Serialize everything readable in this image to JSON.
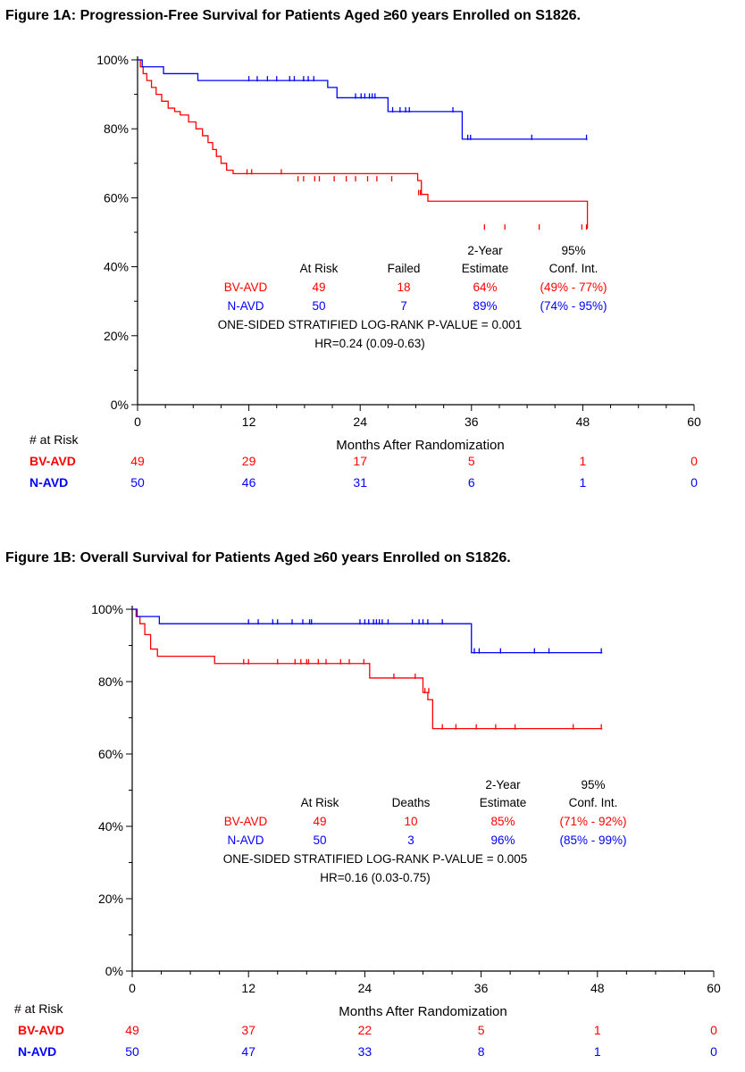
{
  "chart_data": [
    {
      "type": "line",
      "title": "Figure 1A: Progression-Free Survival for Patients Aged ≥60 years Enrolled on S1826.",
      "xlabel": "Months After Randomization",
      "ylabel": "",
      "xlim": [
        0,
        60
      ],
      "ylim": [
        0,
        100
      ],
      "x_ticks": [
        "0",
        "12",
        "24",
        "36",
        "48",
        "60"
      ],
      "y_ticks": [
        "0%",
        "20%",
        "40%",
        "60%",
        "80%",
        "100%"
      ],
      "grid": false,
      "series": [
        {
          "name": "BV-AVD",
          "color": "#ff0000",
          "x": [
            0,
            0.3,
            0.6,
            1.0,
            1.5,
            2.0,
            2.6,
            3.3,
            4.0,
            4.6,
            5.5,
            6.3,
            7.0,
            7.6,
            8.1,
            8.5,
            9.0,
            9.6,
            10.3,
            30.2,
            30.6,
            31.3,
            48.5
          ],
          "y": [
            100,
            98,
            96,
            94,
            92,
            90,
            88,
            86,
            85,
            84,
            82,
            80,
            78,
            76,
            74,
            72,
            70,
            68,
            67,
            65,
            61,
            59,
            51
          ],
          "censor_x": [
            11.8,
            12.3,
            15.5,
            17.3,
            17.9,
            19.1,
            19.6,
            21.2,
            22.5,
            23.5,
            24.8,
            25.8,
            27.4,
            30.3,
            30.5,
            37.4,
            39.6,
            43.3,
            47.9,
            48.4
          ],
          "censor_y": [
            67,
            67,
            67,
            65,
            65,
            65,
            65,
            65,
            65,
            65,
            65,
            65,
            65,
            61,
            61,
            51,
            51,
            51,
            51,
            51
          ]
        },
        {
          "name": "N-AVD",
          "color": "#0000ff",
          "x": [
            0,
            0.5,
            2.8,
            6.5,
            19.5,
            20.5,
            21.5,
            27.0,
            35.0,
            36.0,
            48.5
          ],
          "y": [
            100,
            98,
            96,
            94,
            94,
            92,
            89,
            85,
            77,
            77,
            77
          ],
          "censor_x": [
            12.0,
            12.9,
            14.0,
            15.0,
            16.4,
            16.9,
            17.9,
            18.4,
            19.0,
            23.5,
            24.1,
            24.5,
            25.0,
            25.3,
            25.6,
            27.5,
            28.3,
            28.9,
            29.3,
            34.0,
            35.6,
            35.9,
            42.5,
            48.4
          ],
          "censor_y": [
            94,
            94,
            94,
            94,
            94,
            94,
            94,
            94,
            94,
            89,
            89,
            89,
            89,
            89,
            89,
            85,
            85,
            85,
            85,
            85,
            77,
            77,
            77,
            77
          ]
        }
      ],
      "summary_table": {
        "headers": [
          "At Risk",
          "Failed",
          "2-Year\nEstimate",
          "95%\nConf. Int."
        ],
        "rows": [
          {
            "name": "BV-AVD",
            "values": [
              "49",
              "18",
              "64%",
              "(49% - 77%)"
            ]
          },
          {
            "name": "N-AVD",
            "values": [
              "50",
              "7",
              "89%",
              "(74% - 95%)"
            ]
          }
        ],
        "pvalue": "ONE-SIDED STRATIFIED LOG-RANK P-VALUE = 0.001",
        "hr": "HR=0.24 (0.09-0.63)"
      },
      "at_risk": {
        "label": "# at Risk",
        "rows": [
          {
            "name": "BV-AVD",
            "values": [
              "49",
              "29",
              "17",
              "5",
              "1",
              "0"
            ]
          },
          {
            "name": "N-AVD",
            "values": [
              "50",
              "46",
              "31",
              "6",
              "1",
              "0"
            ]
          }
        ]
      }
    },
    {
      "type": "line",
      "title": "Figure 1B: Overall Survival for Patients Aged ≥60 years Enrolled on S1826.",
      "xlabel": "Months After Randomization",
      "ylabel": "",
      "xlim": [
        0,
        60
      ],
      "ylim": [
        0,
        100
      ],
      "x_ticks": [
        "0",
        "12",
        "24",
        "36",
        "48",
        "60"
      ],
      "y_ticks": [
        "0%",
        "20%",
        "40%",
        "60%",
        "80%",
        "100%"
      ],
      "grid": false,
      "series": [
        {
          "name": "BV-AVD",
          "color": "#ff0000",
          "x": [
            0,
            0.4,
            0.8,
            1.3,
            1.9,
            2.6,
            8.5,
            24.5,
            30.0,
            30.5,
            31.0,
            48.5
          ],
          "y": [
            100,
            98,
            96,
            93,
            89,
            87,
            85,
            81,
            77,
            75,
            67,
            67
          ],
          "censor_x": [
            11.5,
            12.0,
            15.0,
            16.8,
            17.4,
            18.0,
            18.2,
            19.2,
            20.0,
            21.5,
            22.4,
            23.9,
            27.0,
            29.2,
            30.2,
            30.6,
            32.0,
            33.4,
            35.5,
            37.5,
            39.5,
            45.5,
            48.4
          ],
          "censor_y": [
            85,
            85,
            85,
            85,
            85,
            85,
            85,
            85,
            85,
            85,
            85,
            85,
            81,
            81,
            77,
            77,
            67,
            67,
            67,
            67,
            67,
            67,
            67
          ]
        },
        {
          "name": "N-AVD",
          "color": "#0000ff",
          "x": [
            0,
            0.5,
            2.8,
            35.0,
            48.5
          ],
          "y": [
            100,
            98,
            96,
            88,
            88
          ],
          "censor_x": [
            12.0,
            13.0,
            14.5,
            15.0,
            16.5,
            17.6,
            18.3,
            18.5,
            23.5,
            24.0,
            24.4,
            24.9,
            25.2,
            25.5,
            25.8,
            26.4,
            28.9,
            29.6,
            30.0,
            30.5,
            32.0,
            35.3,
            35.8,
            38.0,
            41.5,
            43.0,
            48.4
          ],
          "censor_y": [
            96,
            96,
            96,
            96,
            96,
            96,
            96,
            96,
            96,
            96,
            96,
            96,
            96,
            96,
            96,
            96,
            96,
            96,
            96,
            96,
            96,
            88,
            88,
            88,
            88,
            88,
            88
          ]
        }
      ],
      "summary_table": {
        "headers": [
          "At Risk",
          "Deaths",
          "2-Year\nEstimate",
          "95%\nConf. Int."
        ],
        "rows": [
          {
            "name": "BV-AVD",
            "values": [
              "49",
              "10",
              "85%",
              "(71% - 92%)"
            ]
          },
          {
            "name": "N-AVD",
            "values": [
              "50",
              "3",
              "96%",
              "(85% - 99%)"
            ]
          }
        ],
        "pvalue": "ONE-SIDED STRATIFIED LOG-RANK P-VALUE = 0.005",
        "hr": "HR=0.16 (0.03-0.75)"
      },
      "at_risk": {
        "label": "# at Risk",
        "rows": [
          {
            "name": "BV-AVD",
            "values": [
              "49",
              "37",
              "22",
              "5",
              "1",
              "0"
            ]
          },
          {
            "name": "N-AVD",
            "values": [
              "50",
              "47",
              "33",
              "8",
              "1",
              "0"
            ]
          }
        ]
      }
    }
  ]
}
